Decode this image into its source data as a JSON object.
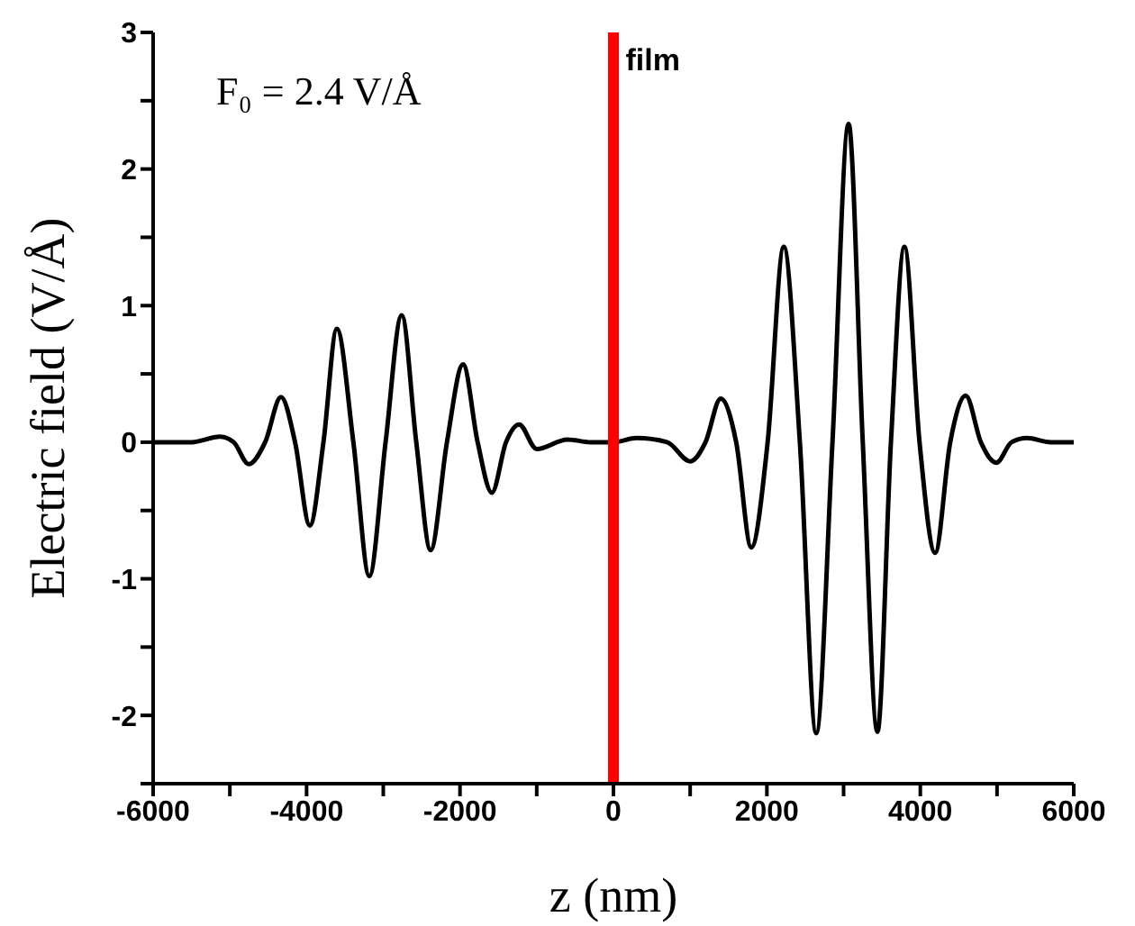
{
  "chart_data": {
    "type": "line",
    "xlabel": "z (nm)",
    "ylabel": "Electric field (V/Å)",
    "annotations": [
      "F₀ = 2.4 V/Å"
    ],
    "x": [
      -6000,
      -5500,
      -5130,
      -4950,
      -4755,
      -4540,
      -4333,
      -4150,
      -3957,
      -3780,
      -3605,
      -3390,
      -3182,
      -2970,
      -2760,
      -2570,
      -2383,
      -2170,
      -1960,
      -1770,
      -1585,
      -1400,
      -1230,
      -1000,
      -600,
      -300,
      0,
      300,
      700,
      1000,
      1200,
      1398,
      1600,
      1797,
      2010,
      2220,
      2430,
      2643,
      2855,
      3065,
      3250,
      3441,
      3617,
      3793,
      3990,
      4193,
      4390,
      4592,
      4790,
      4991,
      5190,
      5390,
      5700,
      6000
    ],
    "series": [
      {
        "color": "#000000",
        "values": [
          0,
          0,
          0.04,
          0,
          -0.16,
          0,
          0.33,
          0,
          -0.61,
          0,
          0.83,
          0,
          -0.98,
          0,
          0.93,
          0,
          -0.79,
          0,
          0.57,
          0,
          -0.37,
          0,
          0.13,
          -0.05,
          0.02,
          0,
          0,
          0.03,
          0,
          -0.14,
          0,
          0.32,
          0,
          -0.77,
          0,
          1.43,
          0,
          -2.13,
          0,
          2.33,
          0,
          -2.12,
          0,
          1.43,
          0,
          -0.81,
          0,
          0.34,
          0,
          -0.15,
          0,
          0.03,
          0,
          0
        ]
      }
    ],
    "xlim": [
      -6000,
      6000
    ],
    "xticks": [
      -6000,
      {
        "value": -5000,
        "label": null
      },
      -4000,
      {
        "value": -3000,
        "label": null
      },
      -2000,
      {
        "value": -1000,
        "label": null
      },
      0,
      {
        "value": 1000,
        "label": null
      },
      2000,
      {
        "value": 3000,
        "label": null
      },
      4000,
      {
        "value": 5000,
        "label": null
      },
      6000
    ],
    "ylim": [
      -2.5,
      3
    ],
    "yticks": [
      {
        "value": -2.5,
        "label": null
      },
      -2,
      {
        "value": -1.5,
        "label": null
      },
      -1,
      {
        "value": -0.5,
        "label": null
      },
      0,
      {
        "value": 0.5,
        "label": null
      },
      1,
      {
        "value": 1.5,
        "label": null
      },
      2,
      {
        "value": 2.5,
        "label": null
      },
      3
    ],
    "ref_lines": [
      {
        "axis": "x",
        "value": 0,
        "label": "film",
        "color": "#ff0000"
      }
    ],
    "grid": false,
    "legend": false,
    "marker": "none",
    "line_style": "solid"
  }
}
